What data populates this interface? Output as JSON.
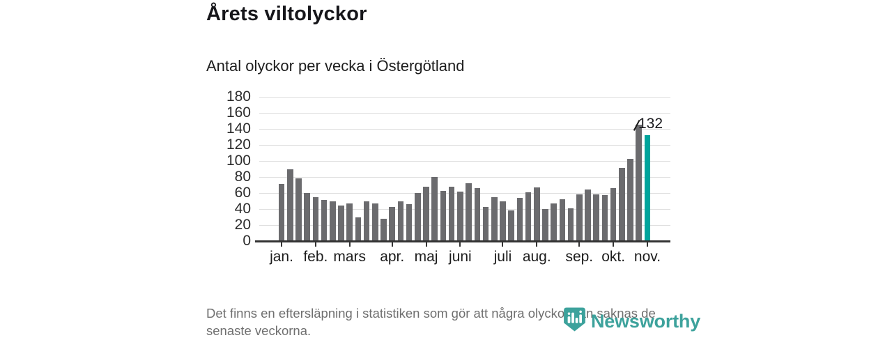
{
  "title": "Årets viltolyckor",
  "subtitle": "Antal olyckor per vecka i Östergötland",
  "footer": {
    "lines": [
      "Det finns en eftersläpning i statistiken som gör att några olyckor kan saknas de",
      "senaste veckorna."
    ]
  },
  "logo": {
    "wordmark": "Newsworthy"
  },
  "colors": {
    "bar": "#6b6b6e",
    "highlight": "#00a49c",
    "grid": "#dedede",
    "axis": "#333333",
    "text": "#1a1a1a",
    "footer_text": "#6f6f6f",
    "logo": "#3da29c"
  },
  "chart_data": {
    "type": "bar",
    "title": "Årets viltolyckor",
    "subtitle": "Antal olyckor per vecka i Östergötland",
    "xlabel": "",
    "ylabel": "",
    "ylim": [
      0,
      180
    ],
    "yticks": [
      0,
      20,
      40,
      60,
      80,
      100,
      120,
      140,
      160,
      180
    ],
    "grid": "horizontal",
    "values": [
      71,
      90,
      78,
      60,
      55,
      51,
      50,
      44,
      47,
      30,
      50,
      47,
      28,
      43,
      50,
      46,
      60,
      68,
      80,
      63,
      68,
      62,
      72,
      66,
      43,
      55,
      50,
      38,
      54,
      61,
      67,
      40,
      47,
      52,
      41,
      58,
      64,
      58,
      57,
      66,
      91,
      103,
      145,
      132
    ],
    "months": [
      "jan.",
      "feb.",
      "mars",
      "apr.",
      "maj",
      "juni",
      "juli",
      "aug.",
      "sep.",
      "okt.",
      "nov."
    ],
    "month_tick_indices": [
      0,
      4,
      8,
      13,
      17,
      21,
      26,
      30,
      35,
      39,
      43
    ],
    "highlight_index": 43,
    "annotation": {
      "index": 43,
      "label": "132"
    }
  }
}
